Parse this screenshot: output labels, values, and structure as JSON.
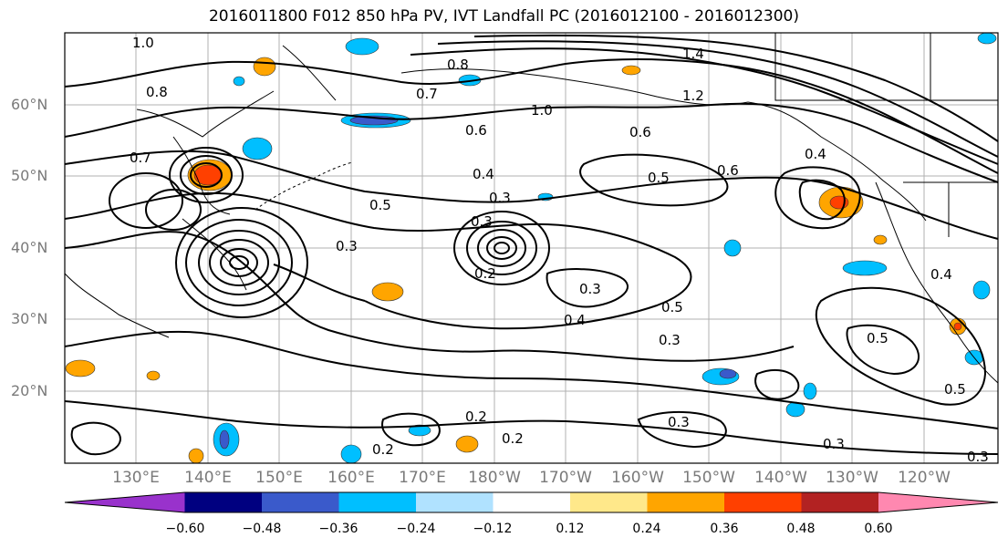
{
  "title": "2016011800 F012 850 hPa PV, IVT Landfall PC (2016012100 - 2016012300)",
  "lat_labels": [
    "60°N",
    "50°N",
    "40°N",
    "30°N",
    "20°N"
  ],
  "lon_labels": [
    "130°E",
    "140°E",
    "150°E",
    "160°E",
    "170°E",
    "180°W",
    "170°W",
    "160°W",
    "150°W",
    "140°W",
    "130°W",
    "120°W"
  ],
  "colorbar": {
    "ticks": [
      "−0.60",
      "−0.48",
      "−0.36",
      "−0.24",
      "−0.12",
      "0.12",
      "0.24",
      "0.36",
      "0.48",
      "0.60"
    ],
    "colors": [
      "#9932cc",
      "#000080",
      "#3a5acb",
      "#00bfff",
      "#b0e2ff",
      "#ffffff",
      "#ffe88a",
      "#ffa500",
      "#ff4000",
      "#b22222",
      "#ff88b0"
    ]
  },
  "contour_labels": [
    "1.0",
    "0.8",
    "0.7",
    "0.6",
    "1.4",
    "1.2",
    "1.0",
    "0.8",
    "0.7",
    "0.6",
    "0.5",
    "0.4",
    "0.3",
    "0.3",
    "0.2",
    "0.5",
    "0.5",
    "0.3",
    "0.4",
    "0.3",
    "0.2",
    "0.2",
    "0.3",
    "0.5",
    "0.6",
    "0.4",
    "0.3",
    "0.2",
    "0.5",
    "0.4",
    "0.3",
    "0.3"
  ]
}
